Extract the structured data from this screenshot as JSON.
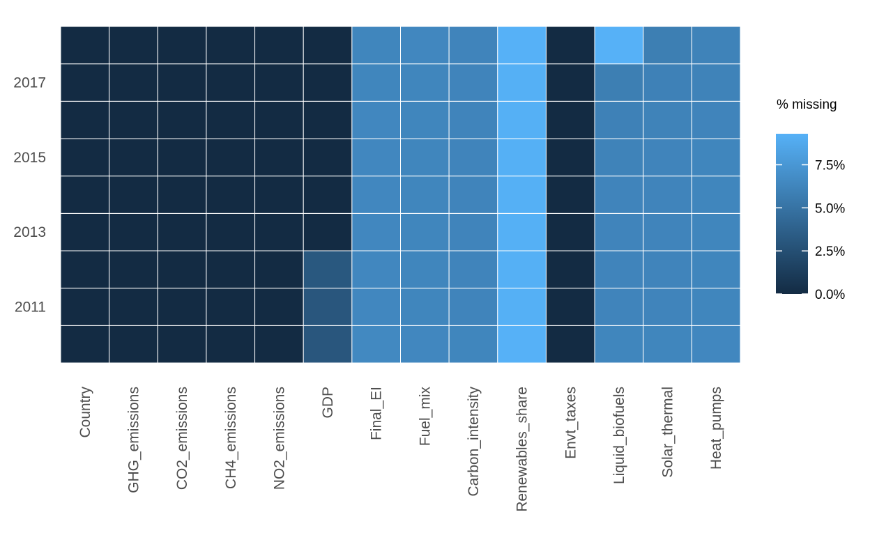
{
  "chart_data": {
    "type": "heatmap",
    "title": "",
    "xlabel": "",
    "ylabel": "",
    "x_categories": [
      "Country",
      "GHG_emissions",
      "CO2_emissions",
      "CH4_emissions",
      "NO2_emissions",
      "GDP",
      "Final_EI",
      "Fuel_mix",
      "Carbon_intensity",
      "Renewables_share",
      "Envt_taxes",
      "Liquid_biofuels",
      "Solar_thermal",
      "Heat_pumps"
    ],
    "y_categories": [
      "2010",
      "2011",
      "2012",
      "2013",
      "2014",
      "2015",
      "2016",
      "2017",
      "2018"
    ],
    "y_tick_labels": [
      "2017",
      "2015",
      "2013",
      "2011"
    ],
    "values": [
      [
        0,
        0,
        0,
        0,
        0,
        3.0,
        6.5,
        6.4,
        6.3,
        9.3,
        0,
        6.3,
        6.3,
        6.4
      ],
      [
        0,
        0,
        0,
        0,
        0,
        3.0,
        6.4,
        6.3,
        6.2,
        9.2,
        0,
        6.2,
        6.2,
        6.3
      ],
      [
        0,
        0,
        0,
        0,
        0,
        3.1,
        6.4,
        6.3,
        6.2,
        9.2,
        0,
        6.2,
        6.2,
        6.3
      ],
      [
        0,
        0,
        0,
        0,
        0,
        0,
        6.4,
        6.3,
        6.2,
        9.2,
        0,
        6.2,
        6.2,
        6.3
      ],
      [
        0,
        0,
        0,
        0,
        0,
        0,
        6.4,
        6.3,
        6.2,
        9.2,
        0,
        6.2,
        6.2,
        6.3
      ],
      [
        0,
        0,
        0,
        0,
        0,
        0,
        6.4,
        6.3,
        6.2,
        9.2,
        0,
        6.1,
        6.2,
        6.3
      ],
      [
        0,
        0,
        0,
        0,
        0,
        0,
        6.4,
        6.3,
        6.2,
        9.2,
        0,
        6.0,
        6.1,
        6.2
      ],
      [
        0,
        0,
        0,
        0,
        0,
        0,
        6.3,
        6.3,
        6.2,
        9.2,
        0,
        5.8,
        6.0,
        6.1
      ],
      [
        0,
        0,
        0,
        0,
        0,
        0,
        6.3,
        6.4,
        6.2,
        9.3,
        0,
        9.3,
        5.8,
        6.1
      ]
    ],
    "color_scale": {
      "low": "#132B43",
      "high": "#56B1F7",
      "min": 0,
      "max": 9.3
    },
    "grid_line_color": "#ffffff",
    "legend": {
      "title": "% missing",
      "position": "right",
      "ticks": [
        {
          "value": 0,
          "label": "0.0%"
        },
        {
          "value": 2.5,
          "label": "2.5%"
        },
        {
          "value": 5.0,
          "label": "5.0%"
        },
        {
          "value": 7.5,
          "label": "7.5%"
        }
      ]
    }
  }
}
